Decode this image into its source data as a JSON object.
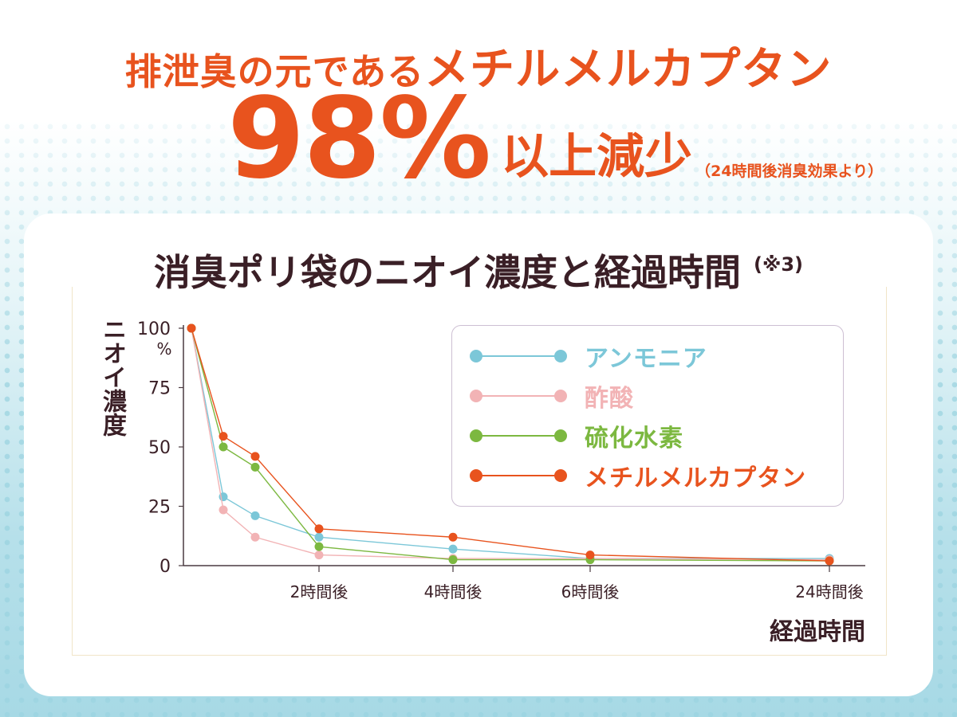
{
  "headline": {
    "line1_prefix": "排泄臭の元である",
    "line1_emph": "メチルメルカプタン",
    "percent": "98%",
    "reduction": "以上減少",
    "note": "（24時間後消臭効果より）"
  },
  "chart_data": {
    "type": "line",
    "title": "消臭ポリ袋のニオイ濃度と経過時間",
    "title_note": "(※3)",
    "ylabel": "ニオイ濃度",
    "xlabel": "経過時間",
    "y_unit": "%",
    "ylim": [
      0,
      100
    ],
    "y_ticks": [
      "100",
      "75",
      "50",
      "25",
      "0"
    ],
    "x_tick_labels": [
      "2時間後",
      "4時間後",
      "6時間後",
      "24時間後"
    ],
    "grid": false,
    "legend_position": "top-right",
    "series": [
      {
        "name": "アンモニア",
        "color": "#7cc7d8",
        "points": [
          [
            0,
            100
          ],
          [
            0.5,
            29
          ],
          [
            1,
            21
          ],
          [
            2,
            12
          ],
          [
            4,
            7
          ],
          [
            6,
            3
          ],
          [
            24,
            3
          ]
        ]
      },
      {
        "name": "酢酸",
        "color": "#f2b3b5",
        "points": [
          [
            0,
            100
          ],
          [
            0.5,
            23.5
          ],
          [
            1,
            12
          ],
          [
            2,
            4.5
          ],
          [
            4,
            3
          ],
          [
            6,
            3
          ],
          [
            24,
            2.5
          ]
        ]
      },
      {
        "name": "硫化水素",
        "color": "#7cb840",
        "points": [
          [
            0,
            100
          ],
          [
            0.5,
            50
          ],
          [
            1,
            41.5
          ],
          [
            2,
            8
          ],
          [
            4,
            2.5
          ],
          [
            6,
            2.5
          ],
          [
            24,
            2
          ]
        ]
      },
      {
        "name": "メチルメルカプタン",
        "color": "#e8531e",
        "points": [
          [
            0,
            100
          ],
          [
            0.5,
            54.5
          ],
          [
            1,
            46
          ],
          [
            2,
            15.5
          ],
          [
            4,
            12
          ],
          [
            6,
            4.5
          ],
          [
            24,
            2
          ]
        ]
      }
    ]
  }
}
